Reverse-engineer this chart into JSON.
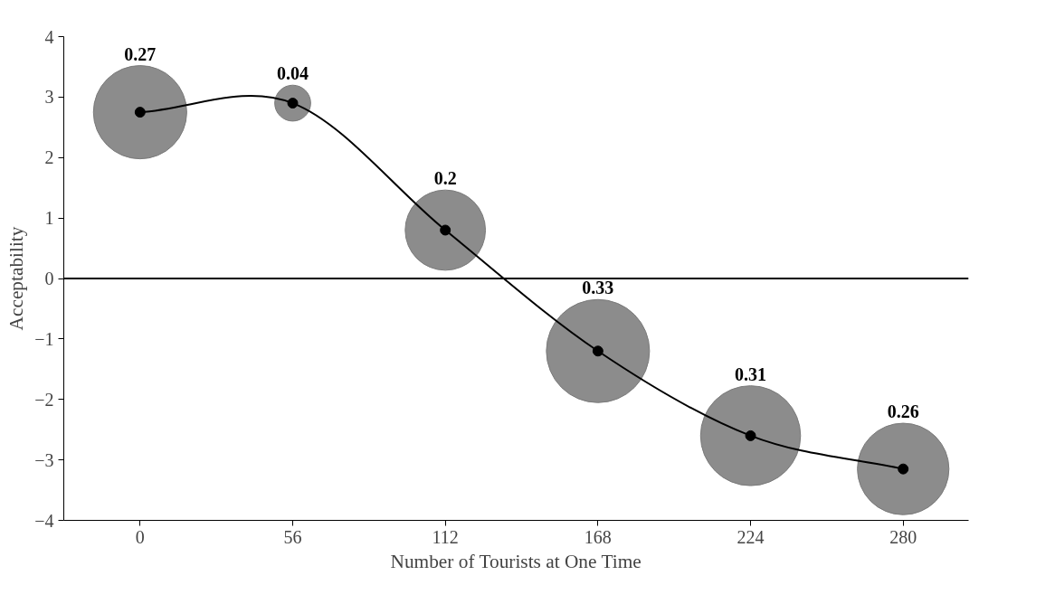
{
  "chart_data": {
    "type": "bubble",
    "xlabel": "Number of Tourists at One Time",
    "ylabel": "Acceptability",
    "x": [
      0,
      56,
      112,
      168,
      224,
      280
    ],
    "xlim": [
      -28,
      304
    ],
    "xticks": [
      0,
      56,
      112,
      168,
      224,
      280
    ],
    "ylim": [
      -4,
      4
    ],
    "yticks": [
      -4,
      -3,
      -2,
      -1,
      0,
      1,
      2,
      3,
      4
    ],
    "series": [
      {
        "color": "#8c8c8c",
        "values": [
          2.75,
          2.9,
          0.8,
          -1.2,
          -2.6,
          -3.15
        ],
        "sizes": [
          0.27,
          0.04,
          0.2,
          0.33,
          0.31,
          0.26
        ],
        "value_labels": [
          "0.27",
          "0.04",
          "0.2",
          "0.33",
          "0.31",
          "0.26"
        ]
      },
      {
        "type": "line",
        "color": "#000000",
        "values": [
          2.75,
          2.9,
          0.8,
          -1.2,
          -2.6,
          -3.15
        ],
        "marker": "circle",
        "line_style": "solid"
      }
    ],
    "ref_lines": [
      {
        "axis": "y",
        "value": 0,
        "color": "#000000"
      }
    ],
    "grid": false
  }
}
